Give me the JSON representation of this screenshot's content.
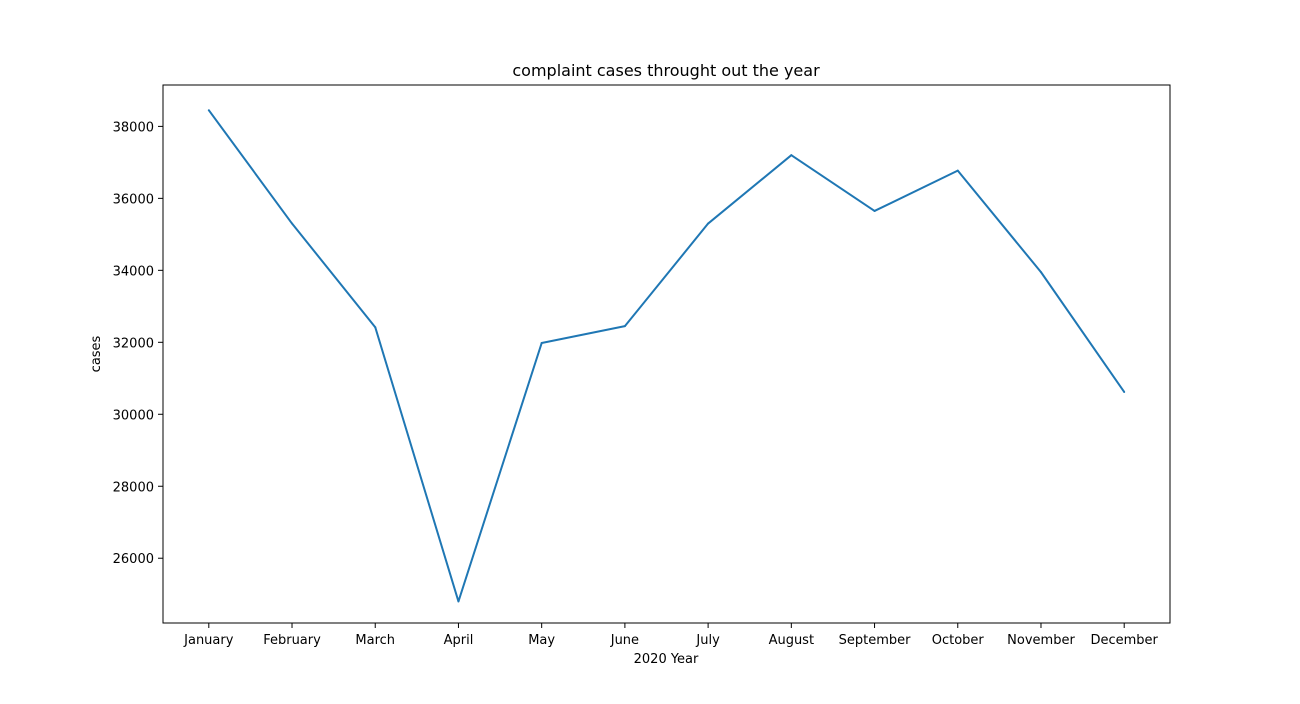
{
  "chart_data": {
    "type": "line",
    "title": "complaint cases throught out the year",
    "xlabel": "2020 Year",
    "ylabel": "cases",
    "categories": [
      "January",
      "February",
      "March",
      "April",
      "May",
      "June",
      "July",
      "August",
      "September",
      "October",
      "November",
      "December"
    ],
    "series": [
      {
        "values": [
          38450,
          35300,
          32420,
          24800,
          31980,
          32450,
          35300,
          37200,
          35650,
          36770,
          33950,
          30620
        ]
      }
    ],
    "ylim": [
      24200,
      39150
    ],
    "yticks": [
      26000,
      28000,
      30000,
      32000,
      34000,
      36000,
      38000
    ],
    "ytick_labels": [
      "26000",
      "28000",
      "30000",
      "32000",
      "34000",
      "36000",
      "38000"
    ],
    "grid": false,
    "legend": "none",
    "colors": {
      "line": "#1f77b4",
      "axes": "#000000",
      "background": "#ffffff"
    }
  }
}
